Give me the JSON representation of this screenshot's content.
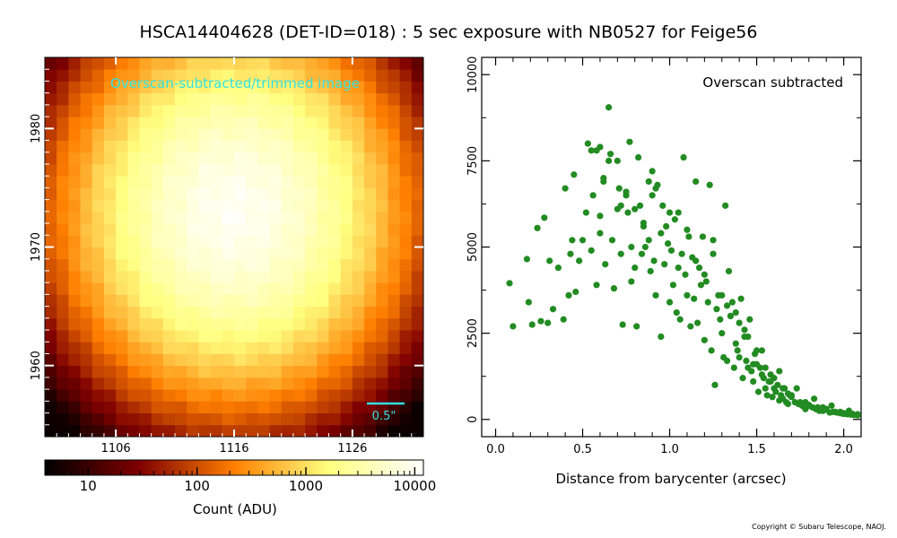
{
  "figure": {
    "title": "HSCA14404628 (DET-ID=018) :  5 sec exposure with NB0527 for Feige56",
    "copyright": "Copyright © Subaru Telescope, NAOJ."
  },
  "chart_data": [
    {
      "type": "heatmap",
      "annotation": "Overscan-subtracted/trimmed image",
      "colormap": "afmhot",
      "annotation_color": "#33e0e0",
      "x_ticks": [
        "1106",
        "1116",
        "1126"
      ],
      "y_ticks": [
        "1960",
        "1970",
        "1980"
      ],
      "xlim": [
        1100,
        1132
      ],
      "ylim": [
        1954,
        1986
      ],
      "peak_count": 10000,
      "peak_x": 1116,
      "peak_y": 1973,
      "scale_bar_label": "0.5\"",
      "colorbar": {
        "label": "Count (ADU)",
        "scale": "log",
        "range": [
          4,
          12000
        ],
        "tick_labels": [
          "10",
          "100",
          "1000",
          "10000"
        ]
      }
    },
    {
      "type": "scatter",
      "annotation": "Overscan subtracted",
      "xlabel": "Distance from barycenter (arcsec)",
      "ylabel": "",
      "xlim": [
        -0.08,
        2.1
      ],
      "ylim": [
        -500,
        10500
      ],
      "x_ticks": [
        0.0,
        0.5,
        1.0,
        1.5,
        2.0
      ],
      "x_tick_labels": [
        "0.0",
        "0.5",
        "1.0",
        "1.5",
        "2.0"
      ],
      "y_ticks": [
        0,
        2500,
        5000,
        7500,
        10000
      ],
      "y_tick_labels": [
        "0",
        "2500",
        "5000",
        "7500",
        "10000"
      ],
      "marker_color": "#228b22",
      "series": [
        {
          "x": [
            0.08,
            0.1,
            0.18,
            0.19,
            0.21,
            0.24,
            0.26,
            0.28,
            0.3,
            0.31,
            0.33,
            0.36,
            0.39,
            0.4,
            0.42,
            0.43,
            0.44,
            0.45,
            0.46,
            0.48,
            0.5,
            0.52,
            0.53,
            0.55,
            0.56,
            0.58,
            0.6,
            0.6,
            0.62,
            0.63,
            0.65,
            0.66,
            0.67,
            0.68,
            0.7,
            0.71,
            0.72,
            0.73,
            0.75,
            0.76,
            0.77,
            0.78,
            0.8,
            0.81,
            0.82,
            0.83,
            0.84,
            0.85,
            0.86,
            0.88,
            0.89,
            0.9,
            0.91,
            0.92,
            0.93,
            0.95,
            0.96,
            0.97,
            0.98,
            0.99,
            1.0,
            1.01,
            1.02,
            1.03,
            1.04,
            1.05,
            1.06,
            1.07,
            1.08,
            1.09,
            1.1,
            1.11,
            1.12,
            1.13,
            1.14,
            1.15,
            1.16,
            1.17,
            1.18,
            1.19,
            1.2,
            1.21,
            1.22,
            1.23,
            1.24,
            1.25,
            1.26,
            1.27,
            1.28,
            1.29,
            1.3,
            1.31,
            1.32,
            1.33,
            1.34,
            1.35,
            1.36,
            1.37,
            1.38,
            1.39,
            1.4,
            1.41,
            1.42,
            1.43,
            1.44,
            1.45,
            1.46,
            1.47,
            1.48,
            1.49,
            1.5,
            1.51,
            1.52,
            1.53,
            1.54,
            1.55,
            1.56,
            1.57,
            1.58,
            1.59,
            1.6,
            1.61,
            1.62,
            1.63,
            1.64,
            1.65,
            1.66,
            1.67,
            1.68,
            1.69,
            1.7,
            1.72,
            1.74,
            1.76,
            1.78,
            1.8,
            1.82,
            1.84,
            1.86,
            1.88,
            1.9,
            1.92,
            1.94,
            1.96,
            1.98,
            2.0,
            2.02,
            2.04,
            2.06,
            2.08,
            0.55,
            0.6,
            0.65,
            0.7,
            0.75,
            0.8,
            0.85,
            0.9,
            0.95,
            1.0,
            0.58,
            0.62,
            0.72,
            0.78,
            0.88,
            0.92,
            1.05,
            1.1,
            1.15,
            1.2,
            1.25,
            1.3,
            1.35,
            1.4,
            1.45,
            1.5,
            1.55,
            1.6,
            1.65,
            1.7,
            1.75,
            1.8,
            1.85,
            1.9,
            1.95,
            2.0,
            2.05,
            1.33,
            1.43,
            1.53,
            1.63,
            1.73,
            1.83,
            1.93,
            2.03,
            1.38,
            1.48,
            1.58,
            1.68,
            1.78,
            1.88,
            1.98,
            2.08
          ],
          "y": [
            3950,
            2700,
            4650,
            3400,
            2750,
            5550,
            2850,
            5850,
            2800,
            4600,
            3200,
            4400,
            2900,
            6700,
            3600,
            4800,
            5200,
            7100,
            3700,
            4600,
            5200,
            6000,
            8000,
            4900,
            6500,
            3900,
            7900,
            5400,
            7000,
            4500,
            9050,
            7700,
            5200,
            3800,
            7500,
            6700,
            4800,
            2750,
            6500,
            6000,
            8050,
            5000,
            4400,
            2700,
            7600,
            6200,
            4800,
            5600,
            5000,
            6900,
            4300,
            7200,
            4600,
            3600,
            6800,
            2400,
            6200,
            4500,
            5600,
            5100,
            3400,
            4900,
            3900,
            5800,
            3100,
            4400,
            2900,
            4800,
            7600,
            4200,
            3600,
            5300,
            2700,
            4700,
            3500,
            6900,
            2800,
            4400,
            3900,
            5300,
            2300,
            4000,
            3400,
            6800,
            2000,
            4800,
            1000,
            3200,
            3600,
            2900,
            2500,
            1800,
            6200,
            1700,
            4300,
            3000,
            3400,
            1500,
            3100,
            2000,
            1800,
            3500,
            1200,
            2400,
            1700,
            1500,
            2900,
            1400,
            1100,
            1900,
            1600,
            800,
            1500,
            1300,
            1200,
            900,
            700,
            1100,
            1300,
            650,
            900,
            800,
            1000,
            550,
            700,
            600,
            900,
            500,
            450,
            700,
            650,
            500,
            450,
            400,
            300,
            400,
            350,
            300,
            250,
            250,
            300,
            200,
            220,
            200,
            180,
            160,
            150,
            140,
            130,
            120,
            7800,
            5900,
            7500,
            6100,
            6600,
            6100,
            5700,
            6500,
            5400,
            6000,
            7800,
            6900,
            6200,
            4000,
            5200,
            6700,
            6000,
            5500,
            4600,
            4200,
            5200,
            3600,
            3000,
            2800,
            2400,
            2000,
            1500,
            1200,
            900,
            700,
            500,
            420,
            350,
            280,
            220,
            180,
            160,
            3300,
            2600,
            2000,
            1400,
            900,
            600,
            400,
            250,
            2200,
            1600,
            1100,
            750,
            500,
            350,
            220,
            150
          ]
        }
      ]
    }
  ]
}
